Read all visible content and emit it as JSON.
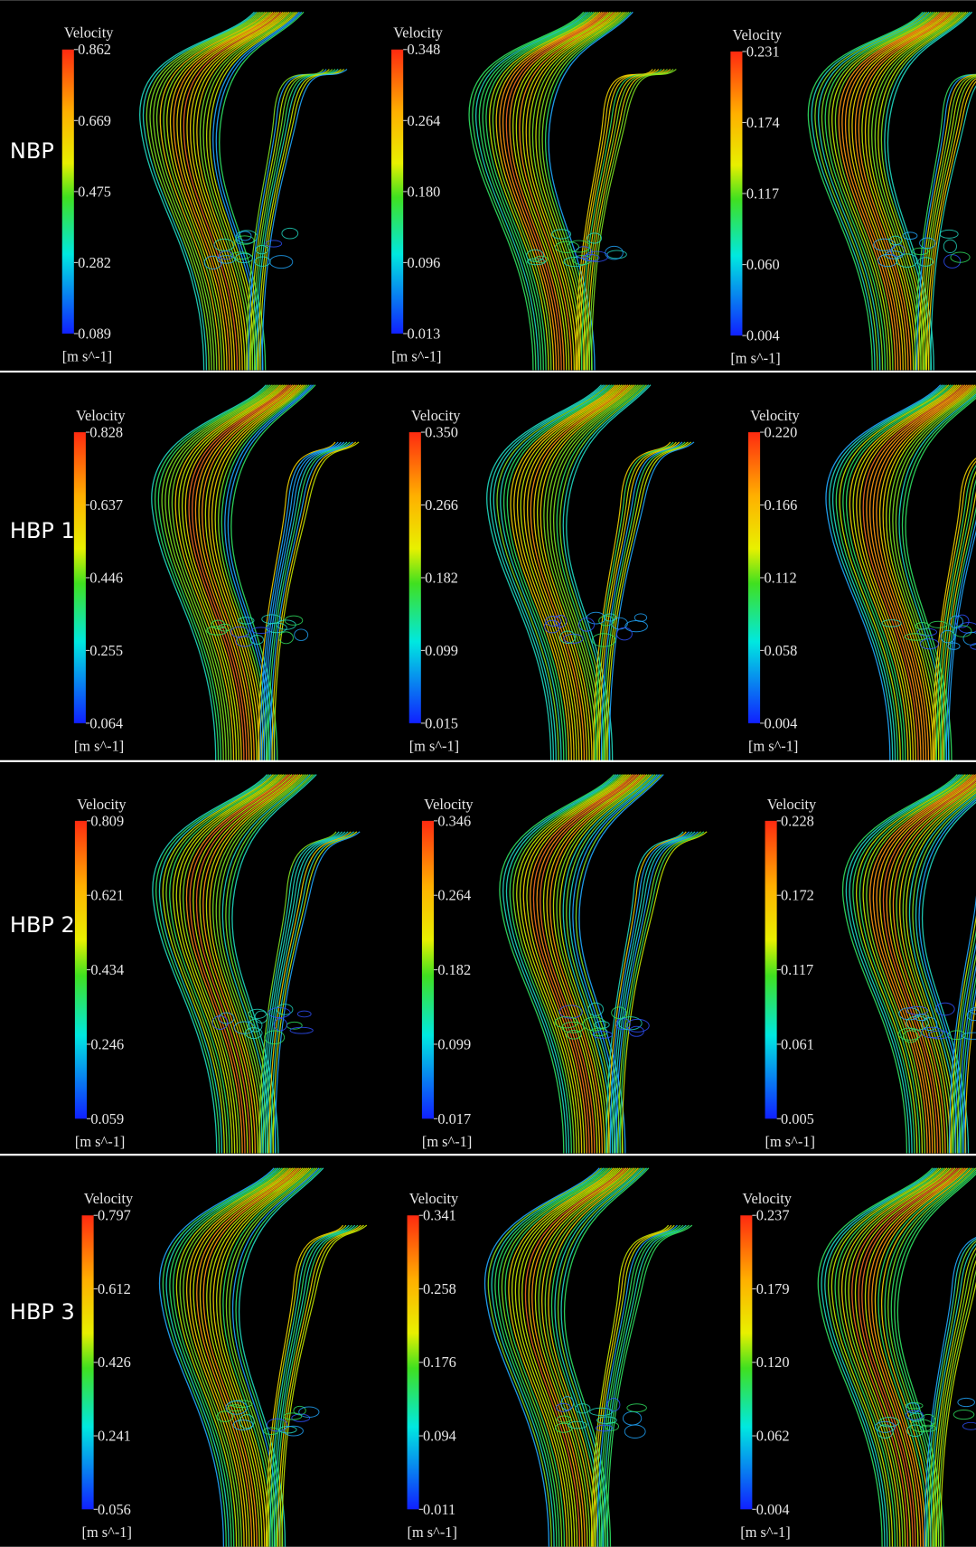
{
  "rows": [
    {
      "label": "NBP",
      "panels": [
        {
          "legend_title": "Velocity",
          "ticks": [
            "0.862",
            "0.669",
            "0.475",
            "0.282",
            "0.089"
          ],
          "unit": "[m s^-1]"
        },
        {
          "legend_title": "Velocity",
          "ticks": [
            "0.348",
            "0.264",
            "0.180",
            "0.096",
            "0.013"
          ],
          "unit": "[m s^-1]"
        },
        {
          "legend_title": "Velocity",
          "ticks": [
            "0.231",
            "0.174",
            "0.117",
            "0.060",
            "0.004"
          ],
          "unit": "[m s^-1]"
        }
      ]
    },
    {
      "label": "HBP 1",
      "panels": [
        {
          "legend_title": "Velocity",
          "ticks": [
            "0.828",
            "0.637",
            "0.446",
            "0.255",
            "0.064"
          ],
          "unit": "[m s^-1]"
        },
        {
          "legend_title": "Velocity",
          "ticks": [
            "0.350",
            "0.266",
            "0.182",
            "0.099",
            "0.015"
          ],
          "unit": "[m s^-1]"
        },
        {
          "legend_title": "Velocity",
          "ticks": [
            "0.220",
            "0.166",
            "0.112",
            "0.058",
            "0.004"
          ],
          "unit": "[m s^-1]"
        }
      ]
    },
    {
      "label": "HBP 2",
      "panels": [
        {
          "legend_title": "Velocity",
          "ticks": [
            "0.809",
            "0.621",
            "0.434",
            "0.246",
            "0.059"
          ],
          "unit": "[m s^-1]"
        },
        {
          "legend_title": "Velocity",
          "ticks": [
            "0.346",
            "0.264",
            "0.182",
            "0.099",
            "0.017"
          ],
          "unit": "[m s^-1]"
        },
        {
          "legend_title": "Velocity",
          "ticks": [
            "0.228",
            "0.172",
            "0.117",
            "0.061",
            "0.005"
          ],
          "unit": "[m s^-1]"
        }
      ]
    },
    {
      "label": "HBP 3",
      "panels": [
        {
          "legend_title": "Velocity",
          "ticks": [
            "0.797",
            "0.612",
            "0.426",
            "0.241",
            "0.056"
          ],
          "unit": "[m s^-1]"
        },
        {
          "legend_title": "Velocity",
          "ticks": [
            "0.341",
            "0.258",
            "0.176",
            "0.094",
            "0.011"
          ],
          "unit": "[m s^-1]"
        },
        {
          "legend_title": "Velocity",
          "ticks": [
            "0.237",
            "0.179",
            "0.120",
            "0.062",
            "0.004"
          ],
          "unit": "[m s^-1]"
        }
      ]
    }
  ]
}
